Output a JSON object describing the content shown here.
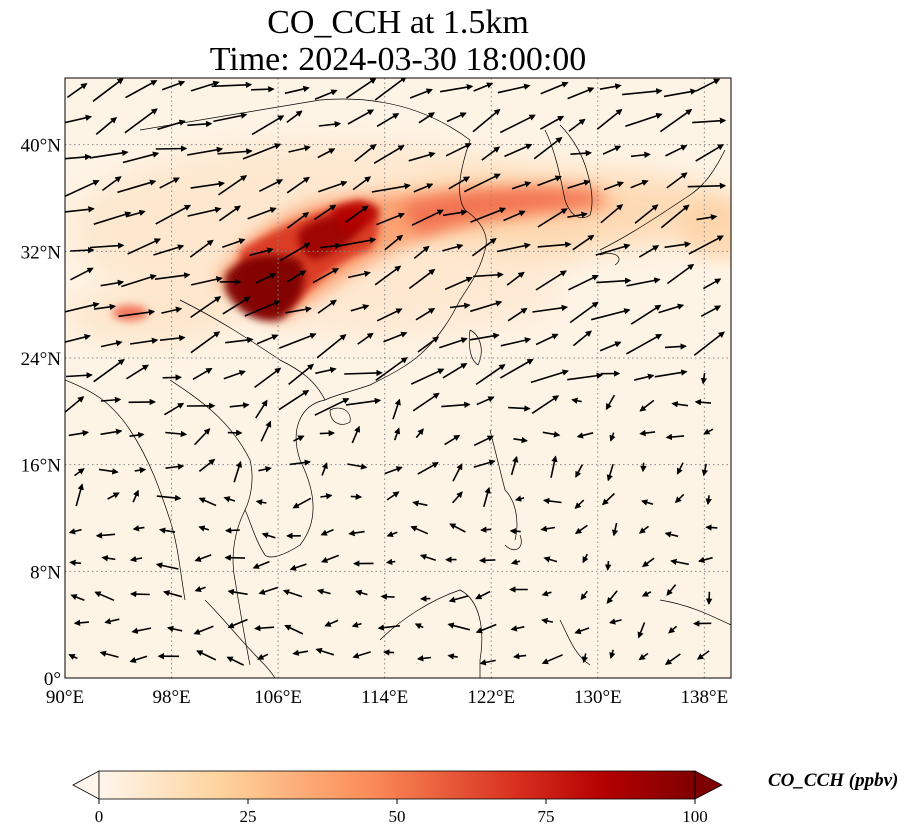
{
  "title": {
    "line1": "CO_CCH at 1.5km",
    "line2": "Time: 2024-03-30 18:00:00"
  },
  "map": {
    "lon_range": [
      90,
      140
    ],
    "lat_range": [
      0,
      45
    ],
    "gridlines": true,
    "lon_ticks": [
      {
        "value": 90,
        "label": "90°E"
      },
      {
        "value": 98,
        "label": "98°E"
      },
      {
        "value": 106,
        "label": "106°E"
      },
      {
        "value": 114,
        "label": "114°E"
      },
      {
        "value": 122,
        "label": "122°E"
      },
      {
        "value": 130,
        "label": "130°E"
      },
      {
        "value": 138,
        "label": "138°E"
      }
    ],
    "lat_ticks": [
      {
        "value": 0,
        "label": "0°"
      },
      {
        "value": 8,
        "label": "8°N"
      },
      {
        "value": 16,
        "label": "16°N"
      },
      {
        "value": 24,
        "label": "24°N"
      },
      {
        "value": 32,
        "label": "32°N"
      },
      {
        "value": 40,
        "label": "40°N"
      }
    ]
  },
  "colorbar": {
    "label": "CO_CCH (ppbv)",
    "ticks": [
      "0",
      "25",
      "50",
      "75",
      "100"
    ],
    "range": [
      0,
      100
    ],
    "extend": "both",
    "colors": [
      "#fff5eb",
      "#fdd49e",
      "#fc8d59",
      "#d7301f",
      "#b30000",
      "#7f0000"
    ]
  },
  "plumes": [
    {
      "lon": 104.5,
      "lat": 29.5,
      "value": 100
    },
    {
      "lon": 110.0,
      "lat": 33.0,
      "value": 95
    },
    {
      "lon": 112.5,
      "lat": 34.0,
      "value": 80
    },
    {
      "lon": 117.0,
      "lat": 35.5,
      "value": 55
    },
    {
      "lon": 124.0,
      "lat": 36.0,
      "value": 45
    },
    {
      "lon": 94.5,
      "lat": 27.5,
      "value": 55
    }
  ]
}
